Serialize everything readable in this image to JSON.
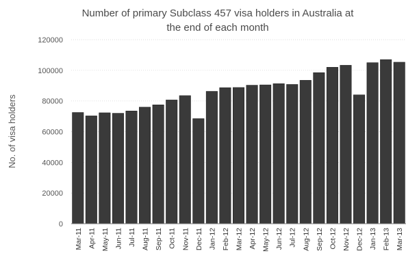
{
  "chart_data": {
    "type": "bar",
    "title_line1": "Number of primary Subclass 457 visa holders in Australia at",
    "title_line2": "the end of each month",
    "xlabel": "",
    "ylabel": "No. of visa holders",
    "ylim": [
      0,
      120000
    ],
    "yticks": [
      "0",
      "20000",
      "40000",
      "60000",
      "80000",
      "100000",
      "120000"
    ],
    "grid": true,
    "categories": [
      "Mar-11",
      "Apr-11",
      "May-11",
      "Jun-11",
      "Jul-11",
      "Aug-11",
      "Sep-11",
      "Oct-11",
      "Nov-11",
      "Dec-11",
      "Jan-12",
      "Feb-12",
      "Mar-12",
      "Apr-12",
      "May-12",
      "Jun-12",
      "Jul-12",
      "Aug-12",
      "Sep-12",
      "Oct-12",
      "Nov-12",
      "Dec-12",
      "Jan-13",
      "Feb-13",
      "Mar-13"
    ],
    "values": [
      72500,
      70300,
      72300,
      72000,
      73500,
      76000,
      77500,
      80700,
      83500,
      68500,
      86300,
      88700,
      88800,
      90300,
      90500,
      91300,
      90800,
      93500,
      98500,
      102000,
      103300,
      84000,
      105000,
      107000,
      105300
    ],
    "bar_color": "#3a3a3a"
  }
}
